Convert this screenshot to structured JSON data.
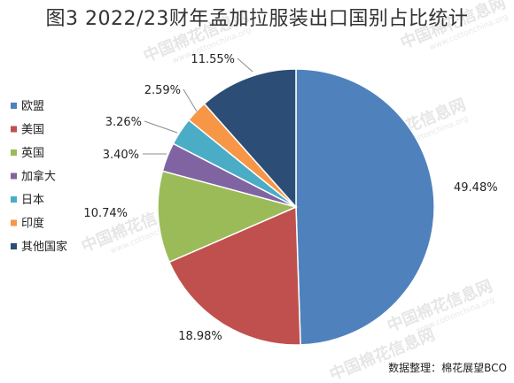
{
  "chart_data": {
    "type": "pie",
    "title": "图3 2022/23财年孟加拉服装出口国别占比统计",
    "categories": [
      "欧盟",
      "美国",
      "英国",
      "加拿大",
      "日本",
      "印度",
      "其他国家"
    ],
    "values": [
      49.48,
      18.98,
      10.74,
      3.4,
      3.26,
      2.59,
      11.55
    ],
    "value_labels": [
      "49.48%",
      "18.98%",
      "10.74%",
      "3.40%",
      "3.26%",
      "2.59%",
      "11.55%"
    ],
    "colors": [
      "#4f81bd",
      "#c0504d",
      "#9bbb59",
      "#8064a2",
      "#4bacc6",
      "#f79646",
      "#2c4d75"
    ],
    "legend_position": "left",
    "start_angle_deg": 0,
    "direction": "clockwise"
  },
  "source_note": "数据整理：棉花展望BCO",
  "watermark": {
    "brand": "中国棉花信息网",
    "url": "www.cottonchina.org"
  }
}
